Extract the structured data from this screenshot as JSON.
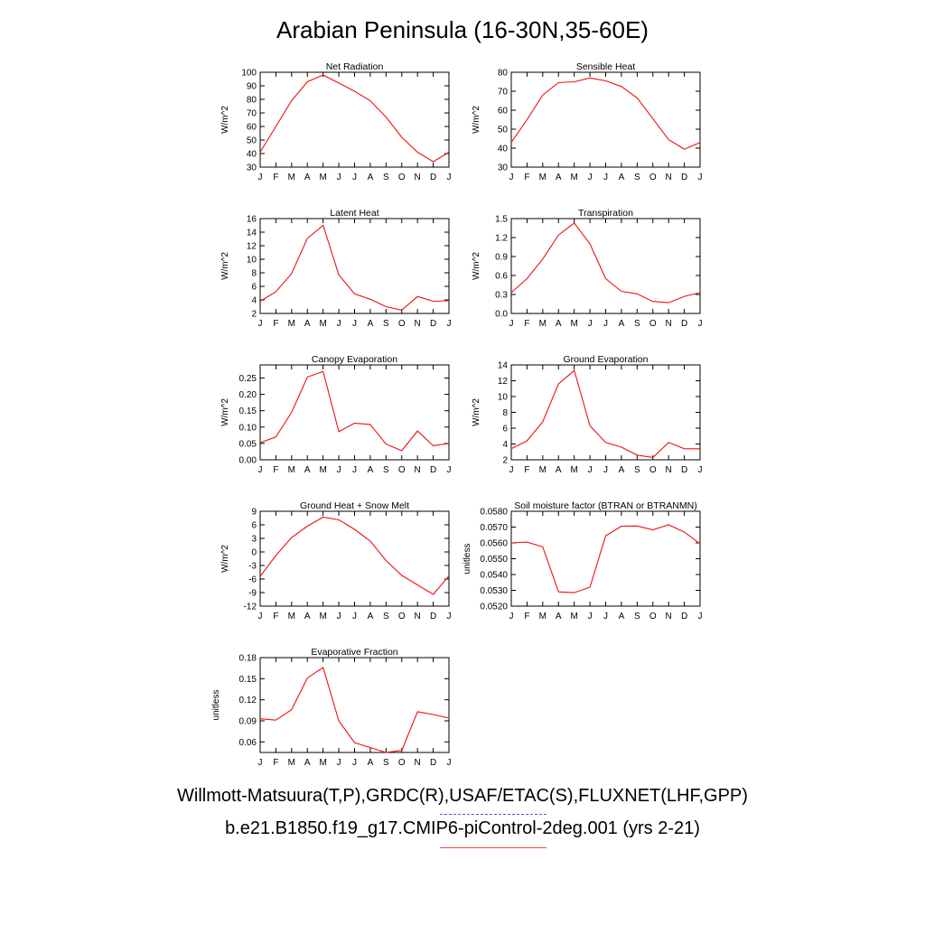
{
  "page": {
    "title": "Arabian Peninsula (16-30N,35-60E)",
    "legend": [
      {
        "label": "Willmott-Matsuura(T,P),GRDC(R),USAF/ETAC(S),FLUXNET(LHF,GPP)",
        "style": "dashed",
        "color": "#5555ee"
      },
      {
        "label": "b.e21.B1850.f19_g17.CMIP6-piControl-2deg.001 (yrs 2-21)",
        "style": "solid",
        "color": "#ff4444"
      }
    ]
  },
  "chart_data": [
    {
      "type": "line",
      "title": "Net Radiation",
      "ylabel": "W/m^2",
      "categories": [
        "J",
        "F",
        "M",
        "A",
        "M",
        "J",
        "J",
        "A",
        "S",
        "O",
        "N",
        "D",
        "J"
      ],
      "ylim": [
        30,
        100
      ],
      "yticks": [
        30,
        40,
        50,
        60,
        70,
        80,
        90,
        100
      ],
      "ytick_labels": [
        "30",
        "40",
        "50",
        "60",
        "70",
        "80",
        "90",
        "100"
      ],
      "series": [
        {
          "name": "b.e21.B1850.f19_g17.CMIP6-piControl-2deg.001 (yrs 2-21)",
          "color": "#ee1111",
          "values": [
            41,
            60,
            79,
            93,
            98,
            92,
            86,
            79,
            67,
            52,
            41,
            34,
            41
          ]
        }
      ]
    },
    {
      "type": "line",
      "title": "Sensible Heat",
      "ylabel": "W/m^2",
      "categories": [
        "J",
        "F",
        "M",
        "A",
        "M",
        "J",
        "J",
        "A",
        "S",
        "O",
        "N",
        "D",
        "J"
      ],
      "ylim": [
        30,
        80
      ],
      "yticks": [
        30,
        40,
        50,
        60,
        70,
        80
      ],
      "ytick_labels": [
        "30",
        "40",
        "50",
        "60",
        "70",
        "80"
      ],
      "series": [
        {
          "name": "b.e21.B1850.f19_g17.CMIP6-piControl-2deg.001 (yrs 2-21)",
          "color": "#ee1111",
          "values": [
            43,
            55,
            68,
            74.5,
            75,
            77,
            75.5,
            72.5,
            66.5,
            55.5,
            44.5,
            39.5,
            43
          ]
        }
      ]
    },
    {
      "type": "line",
      "title": "Latent Heat",
      "ylabel": "W/m^2",
      "categories": [
        "J",
        "F",
        "M",
        "A",
        "M",
        "J",
        "J",
        "A",
        "S",
        "O",
        "N",
        "D",
        "J"
      ],
      "ylim": [
        2,
        16
      ],
      "yticks": [
        2,
        4,
        6,
        8,
        10,
        12,
        14,
        16
      ],
      "ytick_labels": [
        "2",
        "4",
        "6",
        "8",
        "10",
        "12",
        "14",
        "16"
      ],
      "series": [
        {
          "name": "b.e21.B1850.f19_g17.CMIP6-piControl-2deg.001 (yrs 2-21)",
          "color": "#ee1111",
          "values": [
            3.8,
            5.2,
            7.9,
            13.1,
            15.0,
            7.7,
            4.9,
            4.1,
            3.0,
            2.5,
            4.5,
            3.8,
            3.9
          ]
        }
      ]
    },
    {
      "type": "line",
      "title": "Transpiration",
      "ylabel": "W/m^2",
      "categories": [
        "J",
        "F",
        "M",
        "A",
        "M",
        "J",
        "J",
        "A",
        "S",
        "O",
        "N",
        "D",
        "J"
      ],
      "ylim": [
        0,
        1.5
      ],
      "yticks": [
        0,
        0.3,
        0.6,
        0.9,
        1.2,
        1.5
      ],
      "ytick_labels": [
        "0.0",
        "0.3",
        "0.6",
        "0.9",
        "1.2",
        "1.5"
      ],
      "series": [
        {
          "name": "b.e21.B1850.f19_g17.CMIP6-piControl-2deg.001 (yrs 2-21)",
          "color": "#ee1111",
          "values": [
            0.33,
            0.55,
            0.86,
            1.24,
            1.43,
            1.1,
            0.55,
            0.35,
            0.31,
            0.19,
            0.17,
            0.27,
            0.33
          ]
        }
      ]
    },
    {
      "type": "line",
      "title": "Canopy Evaporation",
      "ylabel": "W/m^2",
      "categories": [
        "J",
        "F",
        "M",
        "A",
        "M",
        "J",
        "J",
        "A",
        "S",
        "O",
        "N",
        "D",
        "J"
      ],
      "ylim": [
        0,
        0.29
      ],
      "yticks": [
        0,
        0.05,
        0.1,
        0.15,
        0.2,
        0.25
      ],
      "ytick_labels": [
        "0.00",
        "0.05",
        "0.10",
        "0.15",
        "0.20",
        "0.25"
      ],
      "series": [
        {
          "name": "b.e21.B1850.f19_g17.CMIP6-piControl-2deg.001 (yrs 2-21)",
          "color": "#ee1111",
          "values": [
            0.052,
            0.07,
            0.145,
            0.253,
            0.27,
            0.086,
            0.112,
            0.108,
            0.048,
            0.028,
            0.088,
            0.043,
            0.05
          ]
        }
      ]
    },
    {
      "type": "line",
      "title": "Ground Evaporation",
      "ylabel": "W/m^2",
      "categories": [
        "J",
        "F",
        "M",
        "A",
        "M",
        "J",
        "J",
        "A",
        "S",
        "O",
        "N",
        "D",
        "J"
      ],
      "ylim": [
        2,
        14
      ],
      "yticks": [
        2,
        4,
        6,
        8,
        10,
        12,
        14
      ],
      "ytick_labels": [
        "2",
        "4",
        "6",
        "8",
        "10",
        "12",
        "14"
      ],
      "series": [
        {
          "name": "b.e21.B1850.f19_g17.CMIP6-piControl-2deg.001 (yrs 2-21)",
          "color": "#ee1111",
          "values": [
            3.4,
            4.4,
            6.8,
            11.6,
            13.3,
            6.3,
            4.2,
            3.6,
            2.6,
            2.3,
            4.2,
            3.4,
            3.4
          ]
        }
      ]
    },
    {
      "type": "line",
      "title": "Ground Heat + Snow Melt",
      "ylabel": "W/m^2",
      "categories": [
        "J",
        "F",
        "M",
        "A",
        "M",
        "J",
        "J",
        "A",
        "S",
        "O",
        "N",
        "D",
        "J"
      ],
      "ylim": [
        -12,
        9
      ],
      "yticks": [
        -12,
        -9,
        -6,
        -3,
        0,
        3,
        6,
        9
      ],
      "ytick_labels": [
        "-12",
        "-9",
        "-6",
        "-3",
        "0",
        "3",
        "6",
        "9"
      ],
      "series": [
        {
          "name": "b.e21.B1850.f19_g17.CMIP6-piControl-2deg.001 (yrs 2-21)",
          "color": "#ee1111",
          "values": [
            -5.4,
            -0.8,
            3.2,
            5.7,
            7.7,
            7.1,
            5.0,
            2.4,
            -1.9,
            -5.2,
            -7.3,
            -9.4,
            -5.3
          ]
        }
      ]
    },
    {
      "type": "line",
      "title": "Soil moisture factor (BTRAN or BTRANMN)",
      "ylabel": "unitless",
      "categories": [
        "J",
        "F",
        "M",
        "A",
        "M",
        "J",
        "J",
        "A",
        "S",
        "O",
        "N",
        "D",
        "J"
      ],
      "ylim": [
        0.052,
        0.058
      ],
      "yticks": [
        0.052,
        0.053,
        0.054,
        0.055,
        0.056,
        0.057,
        0.058
      ],
      "ytick_labels": [
        "0.0520",
        "0.0530",
        "0.0540",
        "0.0550",
        "0.0560",
        "0.0570",
        "0.0580"
      ],
      "series": [
        {
          "name": "b.e21.B1850.f19_g17.CMIP6-piControl-2deg.001 (yrs 2-21)",
          "color": "#ee1111",
          "values": [
            0.056,
            0.05605,
            0.05575,
            0.0529,
            0.05285,
            0.0532,
            0.05645,
            0.05705,
            0.05707,
            0.05683,
            0.05715,
            0.05668,
            0.05595
          ]
        }
      ]
    },
    {
      "type": "line",
      "title": "Evaporative Fraction",
      "ylabel": "unitless",
      "categories": [
        "J",
        "F",
        "M",
        "A",
        "M",
        "J",
        "J",
        "A",
        "S",
        "O",
        "N",
        "D",
        "J"
      ],
      "ylim": [
        0.045,
        0.18
      ],
      "yticks": [
        0.06,
        0.09,
        0.12,
        0.15,
        0.18
      ],
      "ytick_labels": [
        "0.06",
        "0.09",
        "0.12",
        "0.15",
        "0.18"
      ],
      "series": [
        {
          "name": "b.e21.B1850.f19_g17.CMIP6-piControl-2deg.001 (yrs 2-21)",
          "color": "#ee1111",
          "values": [
            0.093,
            0.091,
            0.106,
            0.151,
            0.166,
            0.09,
            0.059,
            0.052,
            0.045,
            0.048,
            0.103,
            0.099,
            0.094
          ]
        }
      ]
    }
  ]
}
